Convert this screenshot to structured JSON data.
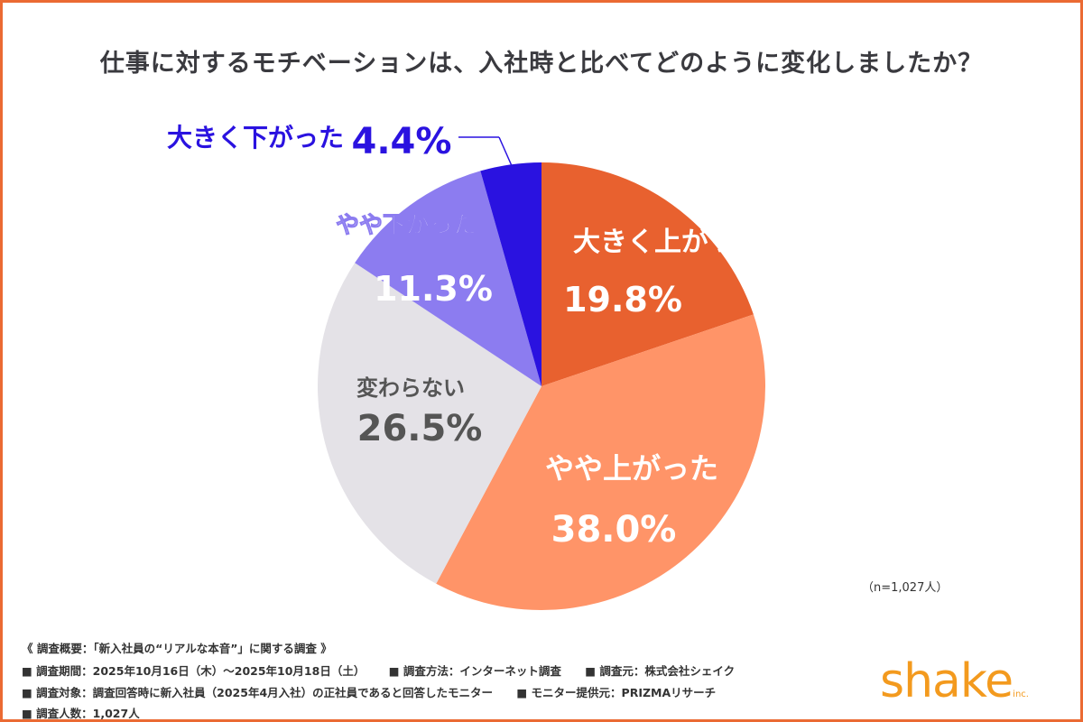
{
  "chart_data": {
    "type": "pie",
    "title": "仕事に対するモチベーションは、入社時と比べてどのように変化しましたか？",
    "start": "top",
    "direction": "clockwise",
    "slices": [
      {
        "label": "大きく上がった",
        "value": 19.8,
        "display": "19.8%",
        "color": "#E8612F"
      },
      {
        "label": "やや上がった",
        "value": 38.0,
        "display": "38.0%",
        "color": "#FF9468"
      },
      {
        "label": "変わらない",
        "value": 26.5,
        "display": "26.5%",
        "color": "#E4E2E7"
      },
      {
        "label": "やや下がった",
        "value": 11.3,
        "display": "11.3%",
        "color": "#8C7CF0"
      },
      {
        "label": "大きく下がった",
        "value": 4.4,
        "display": "4.4%",
        "color": "#2A12E0"
      }
    ],
    "sample_note": "（n=1,027人）"
  },
  "footer": {
    "heading": "《 調査概要：「新入社員の“リアルな本音”」に関する調査 》",
    "period": "■ 調査期間：2025年10月16日（木）～2025年10月18日（土）",
    "method": "■ 調査方法：インターネット調査",
    "source": "■ 調査元：株式会社シェイク",
    "target": "■ 調査対象：調査回答時に新入社員（2025年4月入社）の正社員であると回答したモニター",
    "provider": "■ モニター提供元：PRIZMAリサーチ",
    "count": "■ 調査人数：1,027人"
  },
  "logo": {
    "text": "shake",
    "suffix": "inc."
  }
}
